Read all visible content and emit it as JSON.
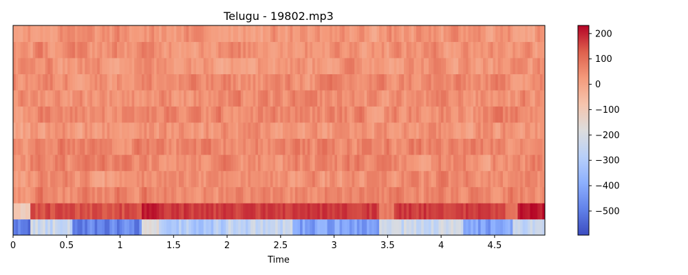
{
  "chart_data": {
    "type": "heatmap",
    "title": "Telugu - 19802.mp3",
    "xlabel": "Time",
    "ylabel": "",
    "xlim": [
      0,
      4.97
    ],
    "x_ticks": [
      0,
      0.5,
      1,
      1.5,
      2,
      2.5,
      3,
      3.5,
      4,
      4.5
    ],
    "x_tick_labels": [
      "0",
      "0.5",
      "1",
      "1.5",
      "2",
      "2.5",
      "3",
      "3.5",
      "4",
      "4.5"
    ],
    "n_coefficients": 13,
    "colormap": "coolwarm",
    "colorbar": {
      "vmin": -595,
      "vmax": 232,
      "ticks": [
        200,
        100,
        0,
        -100,
        -200,
        -300,
        -400,
        -500
      ],
      "tick_labels": [
        "200",
        "100",
        "0",
        "−100",
        "−200",
        "−300",
        "−400",
        "−500"
      ]
    },
    "row_mean_values": [
      -240,
      150,
      65,
      45,
      55,
      65,
      35,
      55,
      45,
      50,
      40,
      45,
      30
    ],
    "row0_segments": [
      {
        "t0": 0.0,
        "t1": 0.15,
        "value": -500
      },
      {
        "t0": 0.15,
        "t1": 0.55,
        "value": -240
      },
      {
        "t0": 0.55,
        "t1": 1.18,
        "value": -480
      },
      {
        "t0": 1.18,
        "t1": 1.35,
        "value": -200
      },
      {
        "t0": 1.35,
        "t1": 2.0,
        "value": -300
      },
      {
        "t0": 2.0,
        "t1": 2.6,
        "value": -260
      },
      {
        "t0": 2.6,
        "t1": 3.4,
        "value": -420
      },
      {
        "t0": 3.4,
        "t1": 3.55,
        "value": -250
      },
      {
        "t0": 3.55,
        "t1": 4.2,
        "value": -230
      },
      {
        "t0": 4.2,
        "t1": 4.65,
        "value": -420
      },
      {
        "t0": 4.65,
        "t1": 4.97,
        "value": -250
      }
    ],
    "row1_segments": [
      {
        "t0": 0.0,
        "t1": 0.15,
        "value": -100
      },
      {
        "t0": 0.15,
        "t1": 1.18,
        "value": 150
      },
      {
        "t0": 1.18,
        "t1": 1.35,
        "value": 200
      },
      {
        "t0": 1.35,
        "t1": 3.4,
        "value": 170
      },
      {
        "t0": 3.4,
        "t1": 3.55,
        "value": 80
      },
      {
        "t0": 3.55,
        "t1": 4.6,
        "value": 170
      },
      {
        "t0": 4.6,
        "t1": 4.7,
        "value": 80
      },
      {
        "t0": 4.7,
        "t1": 4.97,
        "value": 210
      }
    ]
  }
}
